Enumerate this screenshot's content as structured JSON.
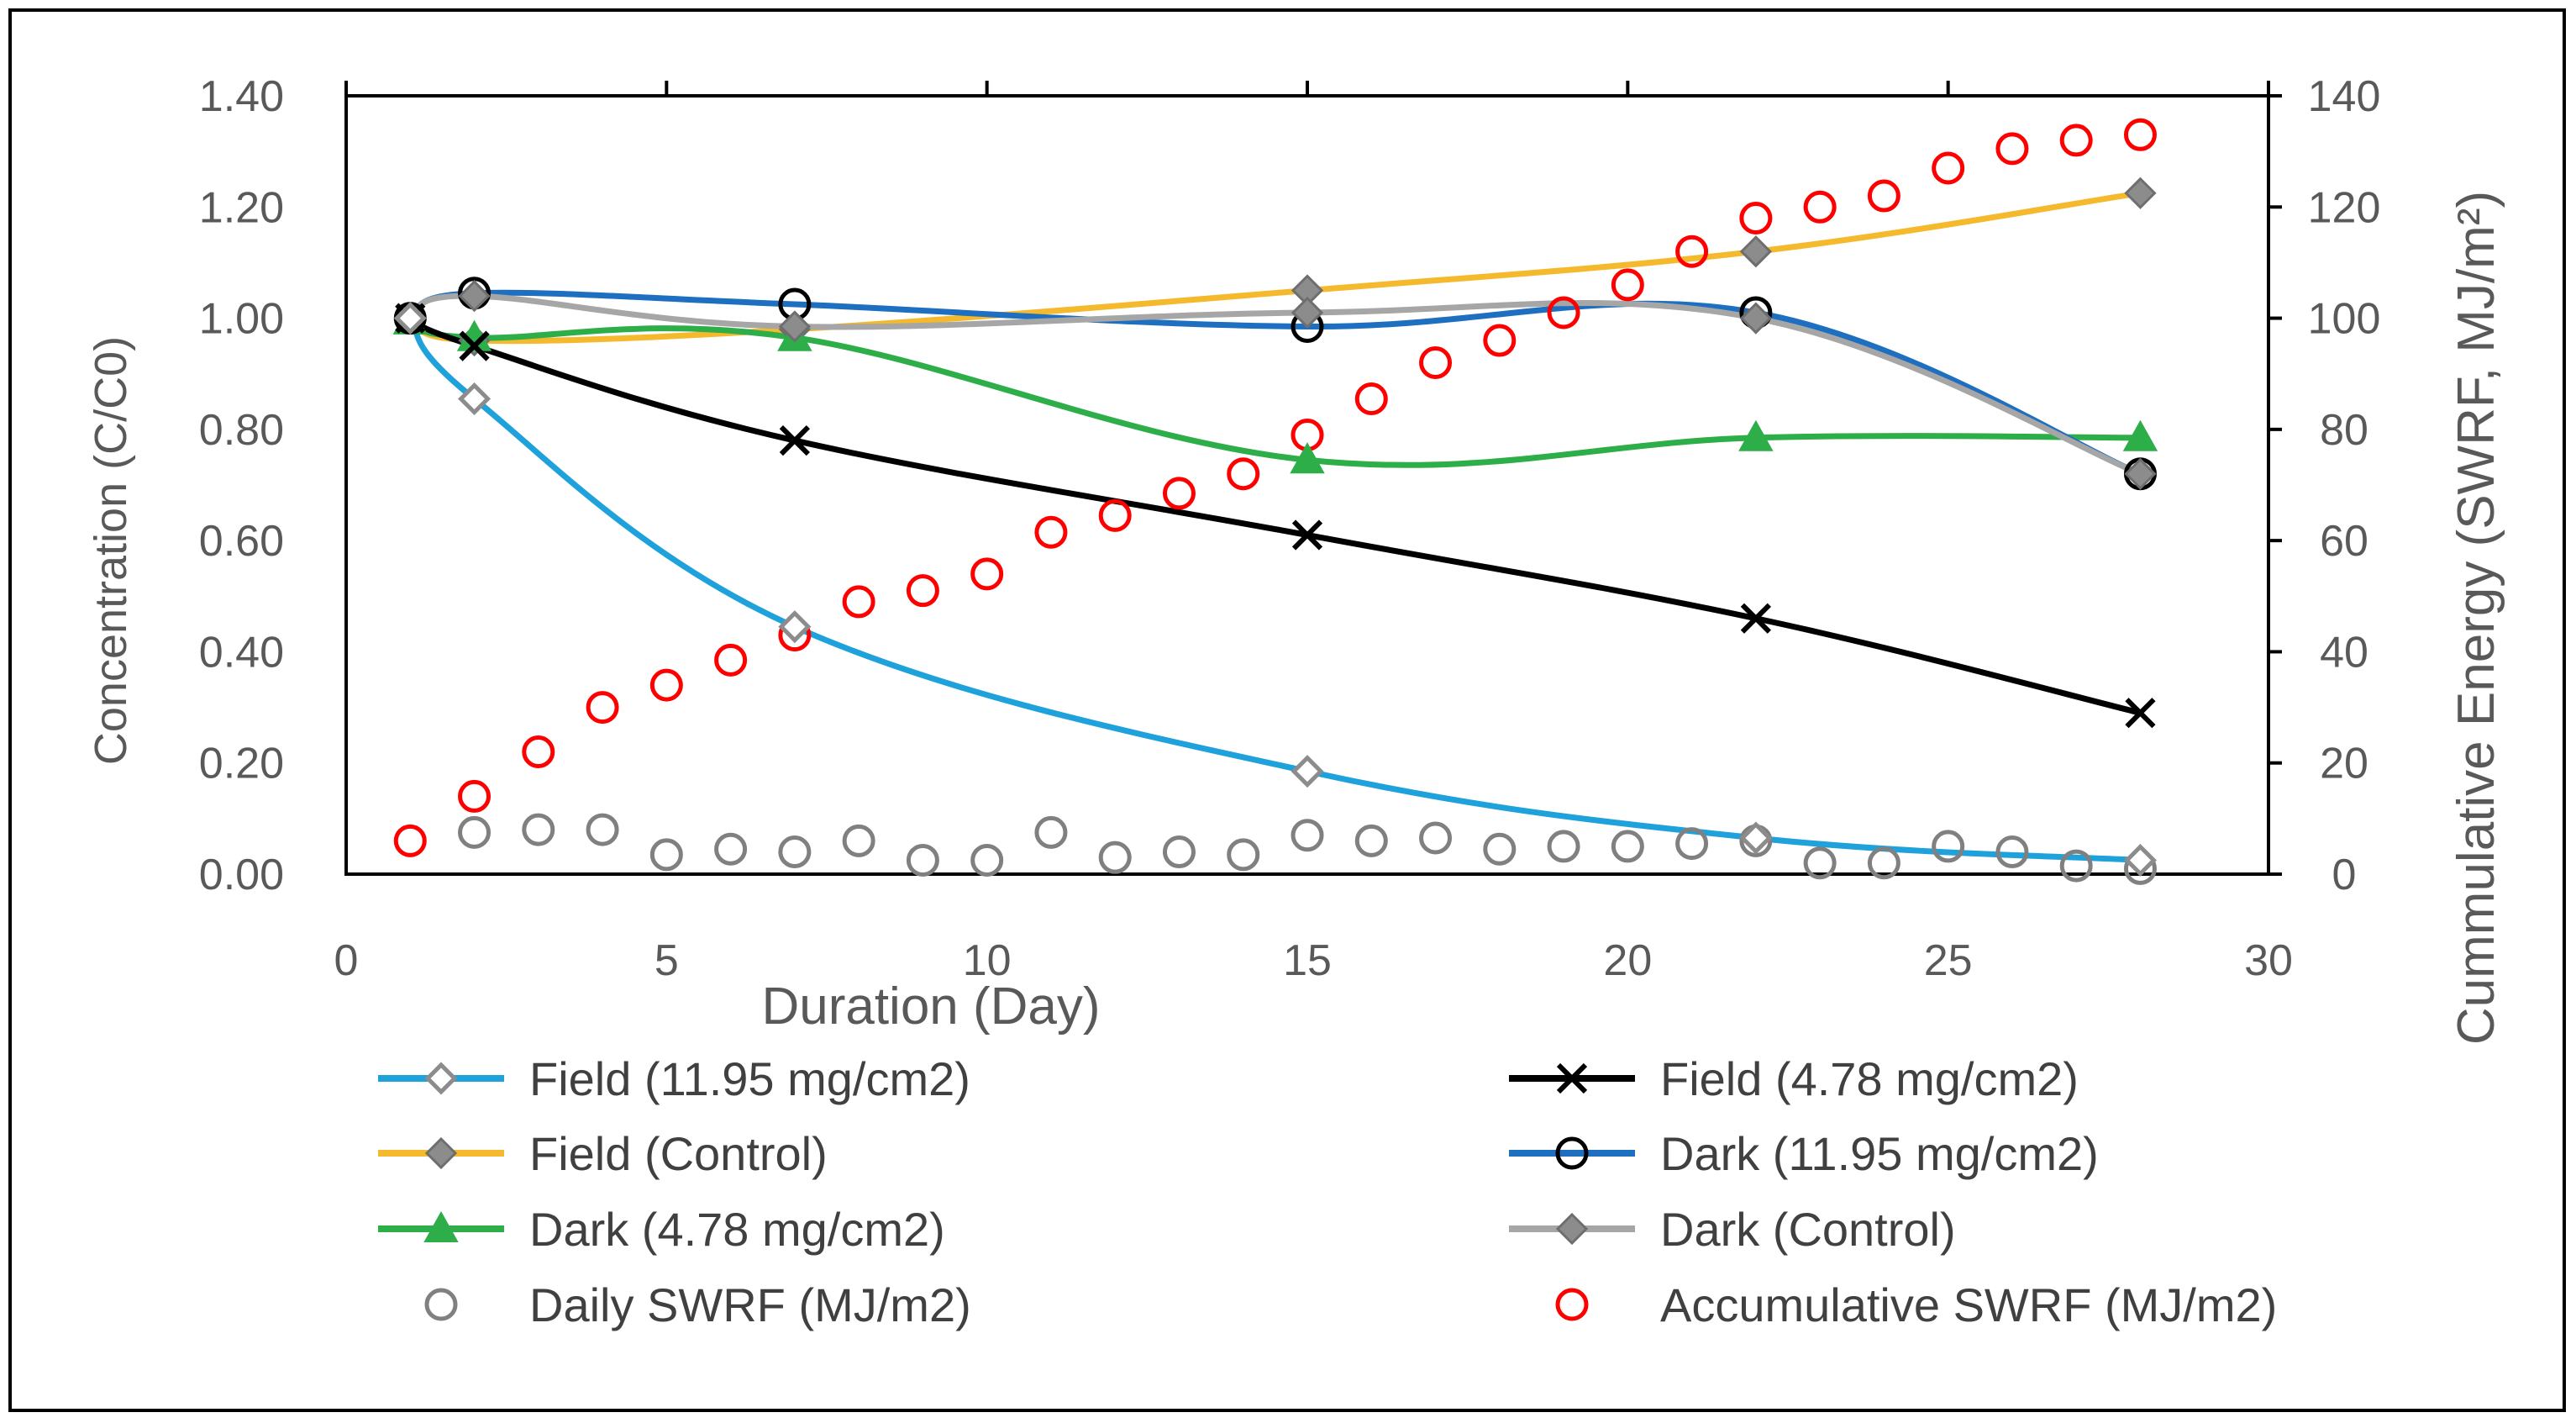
{
  "chart_data": {
    "type": "line",
    "xlabel": "Duration (Day)",
    "ylabel": "Concentration (C/C0)",
    "y2label": "Cummulative Energy (SWRF, MJ/m²)",
    "xlim": [
      0,
      30
    ],
    "ylim": [
      0,
      1.4
    ],
    "y2lim": [
      0,
      140
    ],
    "x_ticks": [
      "0",
      "5",
      "10",
      "15",
      "20",
      "25",
      "30"
    ],
    "y_ticks": [
      "0.00",
      "0.20",
      "0.40",
      "0.60",
      "0.80",
      "1.00",
      "1.20",
      "1.40"
    ],
    "y2_ticks": [
      "0",
      "20",
      "40",
      "60",
      "80",
      "100",
      "120",
      "140"
    ],
    "legend_position": "bottom",
    "series": [
      {
        "name": "Field (11.95 mg/cm2)",
        "axis": "left",
        "line_color": "#1FA1DB",
        "marker": "diamond-open",
        "marker_color": "#8C8C8C",
        "x": [
          1,
          2,
          7,
          15,
          22,
          28
        ],
        "y": [
          1.0,
          0.855,
          0.445,
          0.185,
          0.065,
          0.025
        ]
      },
      {
        "name": "Field (4.78 mg/cm2)",
        "axis": "left",
        "line_color": "#000000",
        "marker": "x",
        "marker_color": "#000000",
        "x": [
          1,
          2,
          7,
          15,
          22,
          28
        ],
        "y": [
          1.0,
          0.95,
          0.78,
          0.61,
          0.46,
          0.29
        ]
      },
      {
        "name": "Field (Control)",
        "axis": "left",
        "line_color": "#F5B92E",
        "marker": "diamond",
        "marker_color": "#8C8C8C",
        "x": [
          1,
          2,
          7,
          15,
          22,
          28
        ],
        "y": [
          1.0,
          0.96,
          0.98,
          1.05,
          1.12,
          1.225
        ]
      },
      {
        "name": "Dark (11.95 mg/cm2)",
        "axis": "left",
        "line_color": "#1F6FC0",
        "marker": "circle-open",
        "marker_color": "#000000",
        "x": [
          1,
          2,
          7,
          15,
          22,
          28
        ],
        "y": [
          1.0,
          1.045,
          1.025,
          0.985,
          1.01,
          0.72
        ]
      },
      {
        "name": "Dark (4.78 mg/cm2)",
        "axis": "left",
        "line_color": "#2DAE48",
        "marker": "triangle",
        "marker_color": "#2DAE48",
        "x": [
          1,
          2,
          7,
          15,
          22,
          28
        ],
        "y": [
          0.995,
          0.965,
          0.965,
          0.745,
          0.785,
          0.785
        ]
      },
      {
        "name": "Dark (Control)",
        "axis": "left",
        "line_color": "#A6A6A6",
        "marker": "diamond",
        "marker_color": "#8C8C8C",
        "x": [
          1,
          2,
          7,
          15,
          22,
          28
        ],
        "y": [
          1.0,
          1.04,
          0.985,
          1.01,
          1.0,
          0.72
        ]
      },
      {
        "name": "Daily SWRF (MJ/m2)",
        "axis": "right",
        "line_color": "none",
        "marker": "circle-open",
        "marker_color": "#808080",
        "x": [
          2,
          3,
          4,
          5,
          6,
          7,
          8,
          9,
          10,
          11,
          12,
          13,
          14,
          15,
          16,
          17,
          18,
          19,
          20,
          21,
          22,
          23,
          24,
          25,
          26,
          27,
          28
        ],
        "y": [
          7.5,
          8,
          8,
          3.5,
          4.5,
          4,
          6,
          2.5,
          2.5,
          7.5,
          3,
          4,
          3.5,
          7,
          6,
          6.5,
          4.5,
          5,
          5,
          5.5,
          6,
          2,
          2,
          5,
          4,
          1.5,
          1
        ]
      },
      {
        "name": "Accumulative SWRF (MJ/m2)",
        "axis": "right",
        "line_color": "none",
        "marker": "circle-open",
        "marker_color": "#FF0000",
        "x": [
          1,
          2,
          3,
          4,
          5,
          6,
          7,
          8,
          9,
          10,
          11,
          12,
          13,
          14,
          15,
          16,
          17,
          18,
          19,
          20,
          21,
          22,
          23,
          24,
          25,
          26,
          27,
          28
        ],
        "y": [
          6,
          14,
          22,
          30,
          34,
          38.5,
          43,
          49,
          51,
          54,
          61.5,
          64.5,
          68.5,
          72,
          79,
          85.5,
          92,
          96,
          101,
          106,
          112,
          118,
          120,
          122,
          127,
          130.5,
          132,
          133
        ]
      }
    ]
  }
}
